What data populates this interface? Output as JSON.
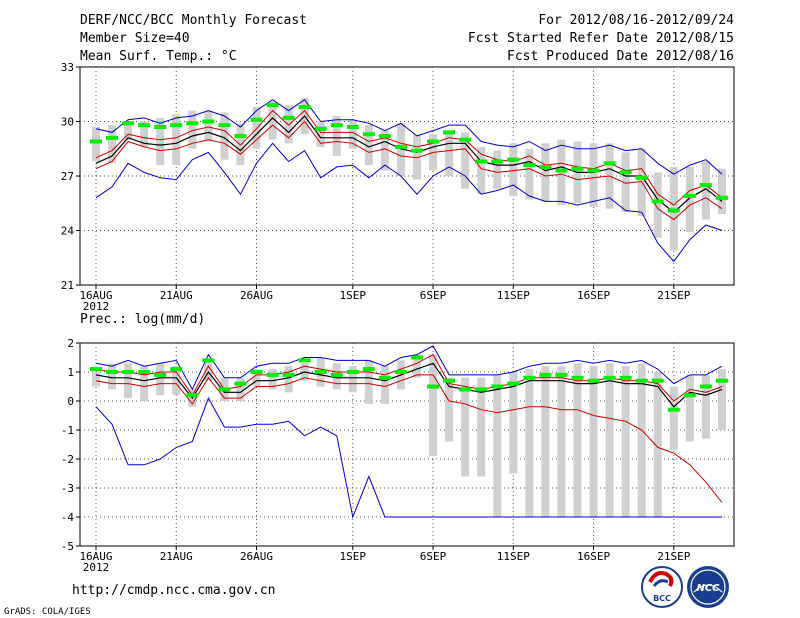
{
  "header": {
    "title": "DERF/NCC/BCC Monthly Forecast",
    "member_size": "Member Size=40",
    "variable": "Mean Surf. Temp.: °C",
    "period": "For 2012/08/16-2012/09/24",
    "fcst_started": "Fcst Started Refer Date 2012/08/15",
    "fcst_produced": "Fcst Produced Date 2012/08/16"
  },
  "footer": {
    "url": "http://cmdp.ncc.cma.gov.cn",
    "credit": "GrADS: COLA/IGES",
    "logo_bcc": "BCC",
    "logo_ncc": "NCC"
  },
  "colors": {
    "envelope": "#0000cc",
    "spread": "#cc0000",
    "mean": "#000000",
    "median": "#00ee00",
    "box": "#d0d0d0",
    "grid": "#555555"
  },
  "chart_data": [
    {
      "type": "line",
      "title": "Mean Surf. Temp.: °C",
      "ylim": [
        21,
        33
      ],
      "yticks": [
        "21",
        "24",
        "27",
        "30",
        "33"
      ],
      "ytick_values": [
        21,
        24,
        27,
        30,
        33
      ],
      "xtick_labels": [
        "16AUG",
        "21AUG",
        "26AUG",
        "1SEP",
        "6SEP",
        "11SEP",
        "16SEP",
        "21SEP"
      ],
      "xtick_days": [
        0,
        5,
        10,
        16,
        21,
        26,
        31,
        36
      ],
      "xlabel_year": "2012",
      "days": 40,
      "series": [
        {
          "name": "max",
          "values": [
            29.6,
            29.4,
            30.1,
            30.2,
            29.9,
            30.2,
            30.3,
            30.6,
            30.3,
            29.7,
            30.6,
            31.2,
            30.6,
            31.2,
            30.0,
            30.1,
            30.1,
            29.9,
            29.5,
            29.9,
            29.2,
            29.5,
            29.8,
            29.8,
            28.9,
            28.7,
            28.6,
            28.9,
            28.4,
            28.7,
            28.5,
            28.5,
            28.7,
            28.4,
            28.5,
            27.7,
            27.1,
            27.6,
            27.9,
            27.1
          ]
        },
        {
          "name": "upper",
          "values": [
            28.0,
            28.4,
            29.3,
            29.1,
            29.0,
            29.1,
            29.5,
            29.7,
            29.5,
            28.7,
            29.6,
            30.6,
            29.8,
            30.6,
            29.4,
            29.4,
            29.4,
            28.9,
            29.1,
            28.8,
            28.6,
            28.8,
            29.1,
            29.0,
            28.2,
            27.9,
            27.8,
            28.1,
            27.6,
            27.7,
            27.5,
            27.4,
            27.7,
            27.3,
            27.4,
            26.0,
            25.4,
            26.2,
            26.5,
            25.8
          ]
        },
        {
          "name": "mean",
          "values": [
            27.7,
            28.1,
            29.1,
            28.8,
            28.7,
            28.8,
            29.2,
            29.4,
            29.1,
            28.4,
            29.3,
            30.2,
            29.4,
            30.3,
            29.1,
            29.1,
            29.1,
            28.6,
            28.9,
            28.5,
            28.3,
            28.6,
            28.8,
            28.8,
            27.8,
            27.6,
            27.6,
            27.8,
            27.3,
            27.5,
            27.2,
            27.2,
            27.4,
            27.0,
            27.0,
            25.7,
            25.0,
            25.8,
            26.3,
            25.6
          ]
        },
        {
          "name": "lower",
          "values": [
            27.4,
            27.8,
            28.9,
            28.6,
            28.4,
            28.5,
            28.8,
            29.0,
            28.8,
            28.2,
            29.0,
            29.8,
            29.1,
            30.0,
            28.8,
            28.9,
            28.8,
            28.3,
            28.5,
            28.1,
            28.0,
            28.3,
            28.4,
            28.5,
            27.4,
            27.2,
            27.3,
            27.4,
            27.0,
            27.1,
            26.8,
            26.9,
            27.0,
            26.6,
            26.7,
            25.2,
            24.6,
            25.4,
            25.8,
            25.2
          ]
        },
        {
          "name": "min",
          "values": [
            25.8,
            26.4,
            27.7,
            27.2,
            26.9,
            26.8,
            27.9,
            28.3,
            27.2,
            26.0,
            27.7,
            28.8,
            27.8,
            28.4,
            26.9,
            27.5,
            27.6,
            26.9,
            27.6,
            27.0,
            26.0,
            27.0,
            27.5,
            27.0,
            26.0,
            26.2,
            26.5,
            25.9,
            25.6,
            25.6,
            25.4,
            25.6,
            25.8,
            25.1,
            25.0,
            23.3,
            22.3,
            23.5,
            24.3,
            24.0
          ]
        },
        {
          "name": "median",
          "values": [
            28.9,
            29.1,
            29.9,
            29.8,
            29.7,
            29.8,
            29.9,
            30.0,
            29.8,
            29.2,
            30.1,
            30.9,
            30.2,
            30.8,
            29.6,
            29.8,
            29.7,
            29.3,
            29.2,
            28.6,
            28.4,
            28.9,
            29.4,
            29.0,
            27.8,
            27.8,
            27.9,
            27.6,
            27.5,
            27.3,
            27.4,
            27.3,
            27.7,
            27.2,
            26.9,
            25.6,
            25.1,
            25.9,
            26.5,
            25.8
          ]
        },
        {
          "name": "box_top",
          "values": [
            29.7,
            29.8,
            30.0,
            30.0,
            30.2,
            30.4,
            30.6,
            30.6,
            30.5,
            29.9,
            30.8,
            31.1,
            30.9,
            31.3,
            30.0,
            30.3,
            30.1,
            29.8,
            29.5,
            29.9,
            29.3,
            29.3,
            29.5,
            29.4,
            28.6,
            28.4,
            28.8,
            28.5,
            28.8,
            29.0,
            28.9,
            28.8,
            28.8,
            28.3,
            28.5,
            27.2,
            27.5,
            27.5,
            27.8,
            27.4
          ]
        },
        {
          "name": "box_bottom",
          "values": [
            27.8,
            27.7,
            29.0,
            28.6,
            27.6,
            27.6,
            28.5,
            28.9,
            27.9,
            27.6,
            28.5,
            29.0,
            28.8,
            29.3,
            28.6,
            28.1,
            28.5,
            27.6,
            27.3,
            27.0,
            26.8,
            27.3,
            27.0,
            26.3,
            26.0,
            26.3,
            25.9,
            25.7,
            25.6,
            25.4,
            25.5,
            25.3,
            25.2,
            25.0,
            24.8,
            23.6,
            22.9,
            23.9,
            24.6,
            24.9
          ]
        }
      ]
    },
    {
      "type": "line",
      "title": "Prec.: log(mm/d)",
      "ylim": [
        -5,
        2
      ],
      "yticks": [
        "-5",
        "-4",
        "-3",
        "-2",
        "-1",
        "0",
        "1",
        "2"
      ],
      "ytick_values": [
        -5,
        -4,
        -3,
        -2,
        -1,
        0,
        1,
        2
      ],
      "xtick_labels": [
        "16AUG",
        "21AUG",
        "26AUG",
        "1SEP",
        "6SEP",
        "11SEP",
        "16SEP",
        "21SEP"
      ],
      "xtick_days": [
        0,
        5,
        10,
        16,
        21,
        26,
        31,
        36
      ],
      "xlabel_year": "2012",
      "days": 40,
      "series": [
        {
          "name": "max",
          "values": [
            1.3,
            1.2,
            1.4,
            1.2,
            1.3,
            1.4,
            0.4,
            1.6,
            0.8,
            0.8,
            1.2,
            1.3,
            1.3,
            1.5,
            1.5,
            1.4,
            1.4,
            1.4,
            1.2,
            1.5,
            1.6,
            1.9,
            0.9,
            0.9,
            0.9,
            0.9,
            1.0,
            1.2,
            1.3,
            1.3,
            1.4,
            1.3,
            1.4,
            1.3,
            1.4,
            1.1,
            0.6,
            0.9,
            0.9,
            1.2
          ]
        },
        {
          "name": "upper",
          "values": [
            1.1,
            1.0,
            1.0,
            0.9,
            1.0,
            1.0,
            0.2,
            1.2,
            0.4,
            0.5,
            0.9,
            0.9,
            1.0,
            1.2,
            1.1,
            1.0,
            1.0,
            1.0,
            0.9,
            1.1,
            1.3,
            1.6,
            0.6,
            0.5,
            0.4,
            0.5,
            0.6,
            0.8,
            0.8,
            0.8,
            0.7,
            0.7,
            0.8,
            0.7,
            0.7,
            0.6,
            0.0,
            0.4,
            0.3,
            0.5
          ]
        },
        {
          "name": "mean",
          "values": [
            0.9,
            0.8,
            0.8,
            0.7,
            0.8,
            0.8,
            0.1,
            1.0,
            0.3,
            0.3,
            0.7,
            0.7,
            0.8,
            1.0,
            0.9,
            0.8,
            0.8,
            0.8,
            0.7,
            0.9,
            1.1,
            1.3,
            0.5,
            0.4,
            0.3,
            0.4,
            0.5,
            0.7,
            0.7,
            0.7,
            0.6,
            0.6,
            0.7,
            0.6,
            0.6,
            0.5,
            -0.2,
            0.3,
            0.2,
            0.4
          ]
        },
        {
          "name": "lower",
          "values": [
            0.7,
            0.6,
            0.6,
            0.5,
            0.6,
            0.6,
            -0.1,
            0.8,
            0.1,
            0.1,
            0.5,
            0.5,
            0.6,
            0.8,
            0.7,
            0.6,
            0.6,
            0.6,
            0.5,
            0.7,
            0.9,
            0.9,
            0.0,
            -0.1,
            -0.3,
            -0.4,
            -0.3,
            -0.2,
            -0.2,
            -0.3,
            -0.3,
            -0.5,
            -0.6,
            -0.7,
            -1.0,
            -1.6,
            -1.8,
            -2.2,
            -2.8,
            -3.5
          ]
        },
        {
          "name": "min",
          "values": [
            -0.2,
            -0.8,
            -2.2,
            -2.2,
            -2.0,
            -1.6,
            -1.4,
            0.1,
            -0.9,
            -0.9,
            -0.8,
            -0.8,
            -0.7,
            -1.2,
            -0.9,
            -1.2,
            -4.0,
            -2.6,
            -4.0,
            -4.0,
            -4.0,
            -4.0,
            -4.0,
            -4.0,
            -4.0,
            -4.0,
            -4.0,
            -4.0,
            -4.0,
            -4.0,
            -4.0,
            -4.0,
            -4.0,
            -4.0,
            -4.0,
            -4.0,
            -4.0,
            -4.0,
            -4.0,
            -4.0
          ]
        },
        {
          "name": "median",
          "values": [
            1.1,
            1.0,
            1.0,
            1.0,
            0.9,
            1.1,
            0.2,
            1.4,
            0.4,
            0.6,
            1.0,
            0.9,
            0.9,
            1.4,
            1.0,
            0.9,
            1.0,
            1.1,
            0.8,
            1.0,
            1.5,
            0.5,
            0.7,
            0.4,
            0.4,
            0.5,
            0.6,
            0.8,
            0.9,
            0.9,
            0.8,
            0.7,
            0.8,
            0.8,
            0.7,
            0.7,
            -0.3,
            0.2,
            0.5,
            0.7
          ]
        },
        {
          "name": "box_top",
          "values": [
            1.0,
            1.3,
            1.3,
            1.2,
            1.3,
            1.2,
            0.4,
            1.4,
            0.8,
            0.8,
            1.1,
            1.1,
            1.2,
            1.3,
            1.5,
            1.3,
            1.2,
            1.4,
            1.2,
            1.4,
            1.6,
            1.6,
            0.8,
            0.8,
            0.8,
            0.9,
            1.0,
            1.1,
            1.2,
            1.2,
            1.3,
            1.2,
            1.3,
            1.2,
            1.3,
            1.0,
            0.5,
            0.9,
            0.9,
            1.1
          ]
        },
        {
          "name": "box_bottom",
          "values": [
            0.5,
            0.4,
            0.1,
            0.0,
            0.2,
            0.2,
            -0.2,
            0.7,
            0.0,
            0.0,
            0.5,
            0.4,
            0.3,
            0.7,
            0.5,
            0.4,
            0.3,
            -0.1,
            -0.1,
            0.4,
            0.8,
            -1.9,
            -1.4,
            -2.6,
            -2.6,
            -4.0,
            -2.5,
            -4.0,
            -4.0,
            -4.0,
            -4.0,
            -4.0,
            -4.0,
            -4.0,
            -4.0,
            -4.0,
            -1.7,
            -1.4,
            -1.3,
            -1.0
          ]
        }
      ]
    }
  ]
}
